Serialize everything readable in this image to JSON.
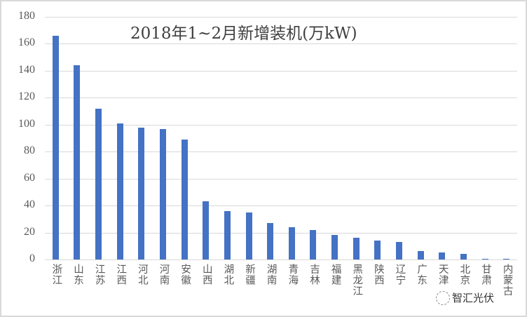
{
  "chart_data": {
    "type": "bar",
    "title": "2018年1~2月新增装机(万kW)",
    "xlabel": "",
    "ylabel": "",
    "ylim": [
      0,
      180
    ],
    "yticks": [
      0,
      20,
      40,
      60,
      80,
      100,
      120,
      140,
      160,
      180
    ],
    "grid": true,
    "legend": null,
    "bar_color": "#4472c4",
    "categories": [
      "浙江",
      "山东",
      "江苏",
      "江西",
      "河北",
      "河南",
      "安徽",
      "山西",
      "湖北",
      "新疆",
      "湖南",
      "青海",
      "吉林",
      "福建",
      "黑龙江",
      "陕西",
      "辽宁",
      "广东",
      "天津",
      "北京",
      "甘肃",
      "内蒙古"
    ],
    "values": [
      166,
      144,
      112,
      101,
      98,
      97,
      89,
      43,
      36,
      35,
      27,
      24,
      22,
      18,
      16,
      14,
      13,
      6,
      5,
      4,
      0.5,
      0.5
    ]
  },
  "watermark": {
    "text": "智汇光伏"
  }
}
